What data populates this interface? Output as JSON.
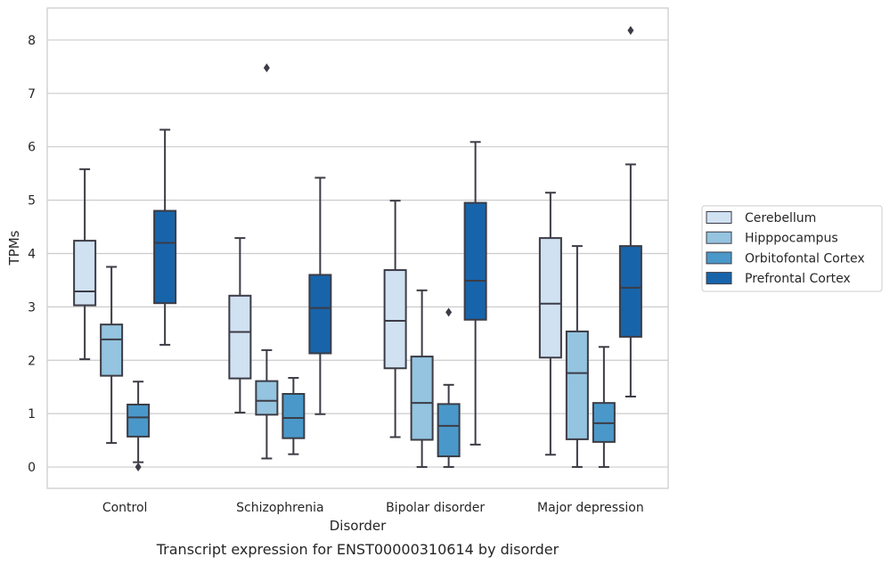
{
  "chart_data": {
    "type": "box",
    "xlabel": "Disorder",
    "ylabel": "TPMs",
    "caption": "Transcript expression for ENST00000310614 by disorder",
    "ylim": [
      -0.4,
      8.6
    ],
    "yticks": [
      0,
      1,
      2,
      3,
      4,
      5,
      6,
      7,
      8
    ],
    "grid": "horizontal",
    "legend_position": "right",
    "categories": [
      "Control",
      "Schizophrenia",
      "Bipolar disorder",
      "Major depression"
    ],
    "series": [
      {
        "name": "Cerebellum",
        "color": "#d0e1f2",
        "boxes": [
          {
            "whisker_low": 2.02,
            "q1": 3.03,
            "median": 3.29,
            "q3": 4.24,
            "whisker_high": 5.58,
            "outliers": []
          },
          {
            "whisker_low": 1.02,
            "q1": 1.66,
            "median": 2.53,
            "q3": 3.21,
            "whisker_high": 4.29,
            "outliers": []
          },
          {
            "whisker_low": 0.56,
            "q1": 1.85,
            "median": 2.74,
            "q3": 3.69,
            "whisker_high": 4.99,
            "outliers": []
          },
          {
            "whisker_low": 0.23,
            "q1": 2.05,
            "median": 3.06,
            "q3": 4.29,
            "whisker_high": 5.14,
            "outliers": []
          }
        ]
      },
      {
        "name": "Hipppocampus",
        "color": "#94c4df",
        "boxes": [
          {
            "whisker_low": 0.45,
            "q1": 1.71,
            "median": 2.39,
            "q3": 2.67,
            "whisker_high": 3.75,
            "outliers": []
          },
          {
            "whisker_low": 0.16,
            "q1": 0.98,
            "median": 1.24,
            "q3": 1.61,
            "whisker_high": 2.19,
            "outliers": [
              7.48
            ]
          },
          {
            "whisker_low": 0.0,
            "q1": 0.51,
            "median": 1.2,
            "q3": 2.07,
            "whisker_high": 3.31,
            "outliers": []
          },
          {
            "whisker_low": 0.0,
            "q1": 0.52,
            "median": 1.76,
            "q3": 2.54,
            "whisker_high": 4.14,
            "outliers": []
          }
        ]
      },
      {
        "name": "Orbitofontal Cortex",
        "color": "#4a98c9",
        "boxes": [
          {
            "whisker_low": 0.09,
            "q1": 0.57,
            "median": 0.93,
            "q3": 1.17,
            "whisker_high": 1.6,
            "outliers": [
              0.0
            ]
          },
          {
            "whisker_low": 0.24,
            "q1": 0.54,
            "median": 0.92,
            "q3": 1.37,
            "whisker_high": 1.67,
            "outliers": []
          },
          {
            "whisker_low": 0.0,
            "q1": 0.2,
            "median": 0.77,
            "q3": 1.18,
            "whisker_high": 1.54,
            "outliers": [
              2.9
            ]
          },
          {
            "whisker_low": 0.0,
            "q1": 0.47,
            "median": 0.82,
            "q3": 1.2,
            "whisker_high": 2.25,
            "outliers": []
          }
        ]
      },
      {
        "name": "Prefrontal Cortex",
        "color": "#1764ab",
        "boxes": [
          {
            "whisker_low": 2.29,
            "q1": 3.07,
            "median": 4.2,
            "q3": 4.8,
            "whisker_high": 6.32,
            "outliers": []
          },
          {
            "whisker_low": 0.99,
            "q1": 2.13,
            "median": 2.98,
            "q3": 3.6,
            "whisker_high": 5.42,
            "outliers": []
          },
          {
            "whisker_low": 0.42,
            "q1": 2.76,
            "median": 3.49,
            "q3": 4.95,
            "whisker_high": 6.09,
            "outliers": []
          },
          {
            "whisker_low": 1.32,
            "q1": 2.44,
            "median": 3.36,
            "q3": 4.14,
            "whisker_high": 5.67,
            "outliers": [
              8.18
            ]
          }
        ]
      }
    ]
  }
}
